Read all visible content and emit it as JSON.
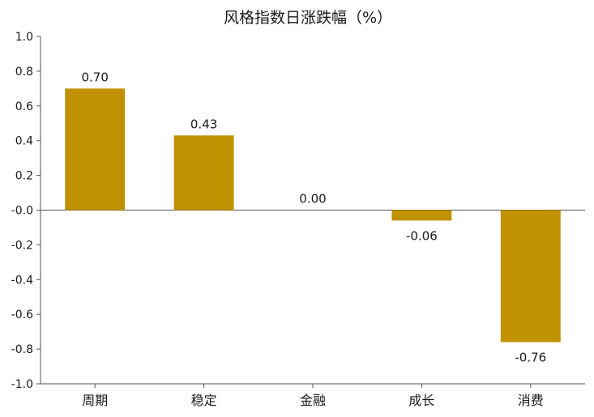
{
  "chart_data": {
    "type": "bar",
    "title": "风格指数日涨跌幅（%）",
    "categories": [
      "周期",
      "稳定",
      "金融",
      "成长",
      "消费"
    ],
    "values": [
      0.7,
      0.43,
      0.0,
      -0.06,
      -0.76
    ],
    "data_labels": [
      "0.70",
      "0.43",
      "0.00",
      "-0.06",
      "-0.76"
    ],
    "ylim": [
      -1.0,
      1.0
    ],
    "yticks": [
      1.0,
      0.8,
      0.6,
      0.4,
      0.2,
      0.0,
      -0.2,
      -0.4,
      -0.6,
      -0.8,
      -1.0
    ],
    "ytick_labels": [
      "1.0",
      "0.8",
      "0.6",
      "0.4",
      "0.2",
      "-0.0",
      "-0.2",
      "-0.4",
      "-0.6",
      "-0.8",
      "-1.0"
    ],
    "bar_color": "#C09100",
    "axis_color": "#555555",
    "grid": false,
    "legend": false
  }
}
